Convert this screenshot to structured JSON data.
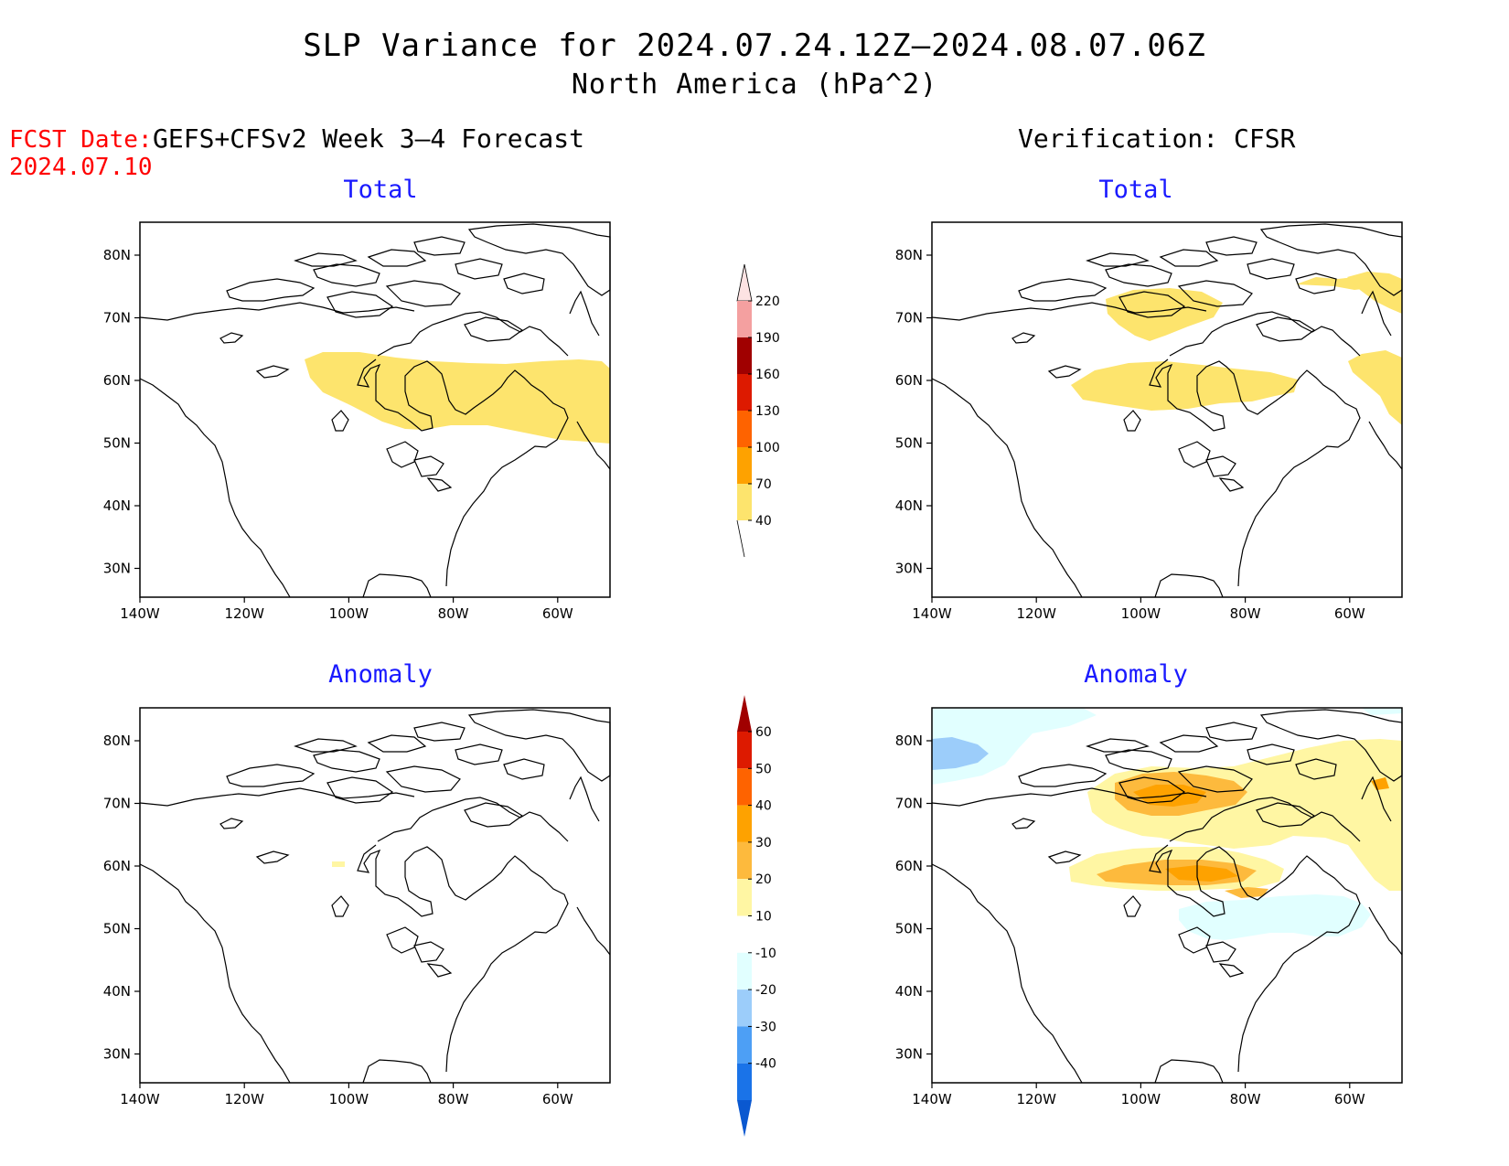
{
  "title": "SLP Variance for 2024.07.24.12Z–2024.08.07.06Z",
  "subtitle": "North America (hPa^2)",
  "forecast_date": {
    "label": "FCST Date:",
    "value": "2024.07.10"
  },
  "forecast_model": "GEFS+CFSv2 Week 3–4 Forecast",
  "verification": "Verification: CFSR",
  "panels": [
    {
      "title": "Total"
    },
    {
      "title": "Total"
    },
    {
      "title": "Anomaly"
    },
    {
      "title": "Anomaly"
    }
  ],
  "axes": {
    "lat_labels": [
      "80N",
      "70N",
      "60N",
      "50N",
      "40N",
      "30N"
    ],
    "lon_labels": [
      "140W",
      "120W",
      "100W",
      "80W",
      "60W"
    ]
  },
  "colorbar_total": {
    "labels": [
      "220",
      "190",
      "160",
      "130",
      "100",
      "70",
      "40"
    ],
    "colors": [
      "#fde3e3",
      "#f4a0a0",
      "#a00000",
      "#dd1a00",
      "#fe6300",
      "#fea200",
      "#fde46d"
    ]
  },
  "colorbar_anomaly": {
    "labels": [
      "60",
      "50",
      "40",
      "30",
      "20",
      "10",
      "-10",
      "-20",
      "-30",
      "-40"
    ],
    "colors": [
      "#a00000",
      "#dd1a00",
      "#fe6300",
      "#fea200",
      "#fdba3d",
      "#fff6a3",
      "#ffffff",
      "#e1ffff",
      "#9ccdfa",
      "#4d9ff5",
      "#1a73e8",
      "#0a58d0"
    ]
  }
}
